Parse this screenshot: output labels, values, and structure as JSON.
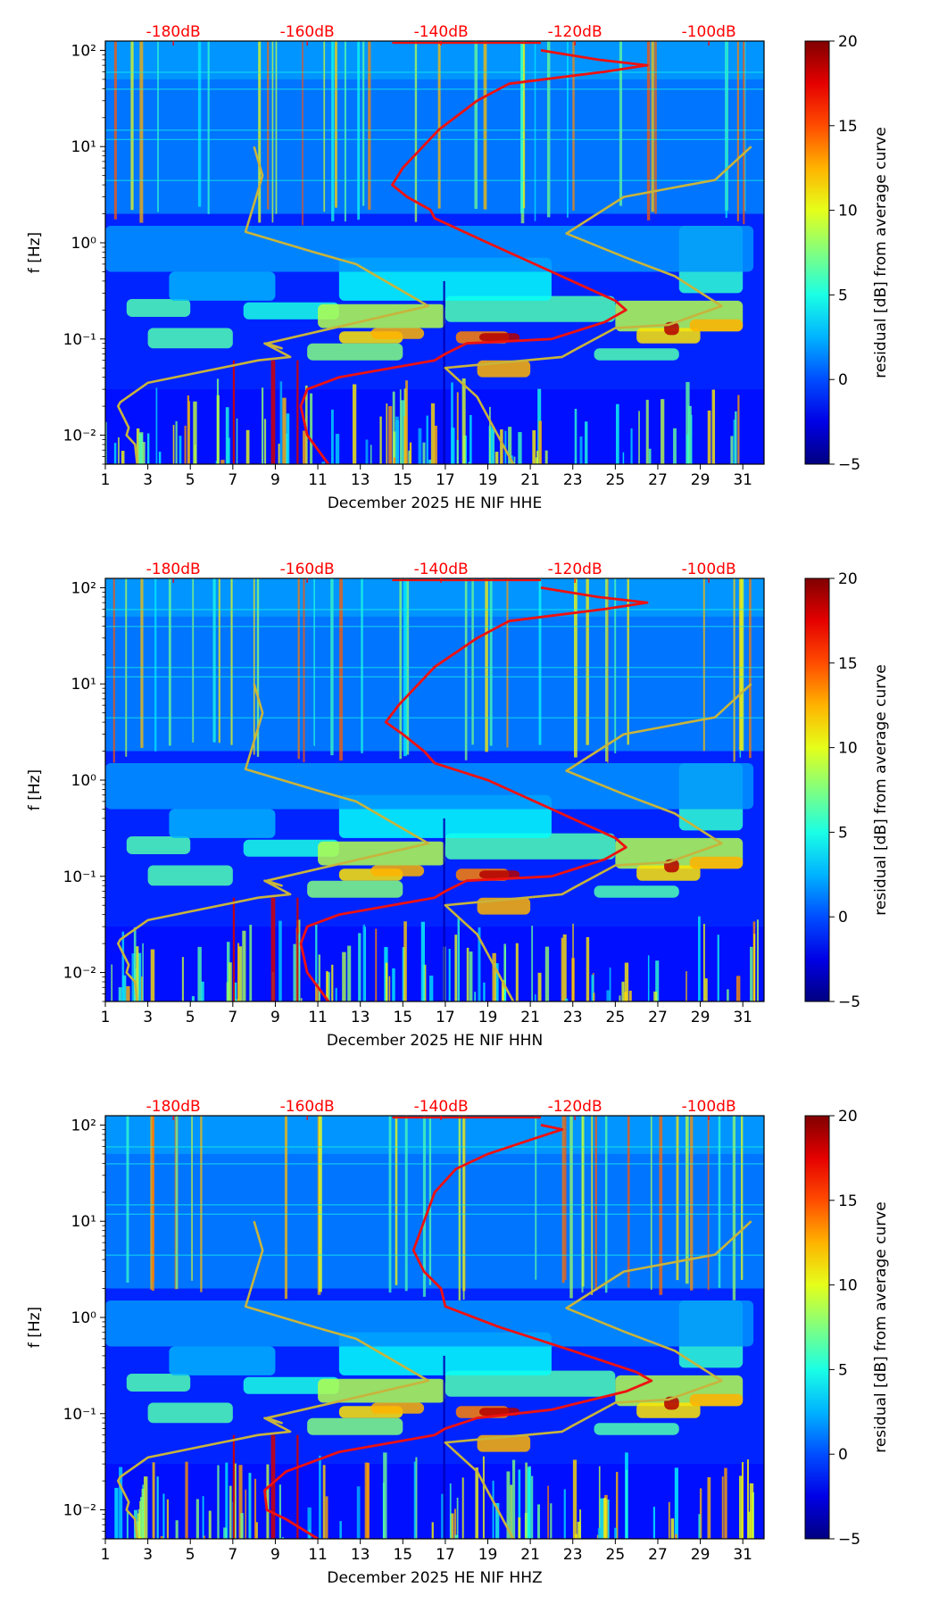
{
  "chart_data": [
    {
      "type": "heatmap",
      "channel": "HHE",
      "xlabel": "December 2025 HE NIF  HHE",
      "ylabel": "f [Hz]",
      "x_ticks": [
        "1",
        "3",
        "5",
        "7",
        "9",
        "11",
        "13",
        "15",
        "17",
        "19",
        "21",
        "23",
        "25",
        "27",
        "29",
        "31"
      ],
      "x_range": [
        1,
        32
      ],
      "y_ticks": [
        "10⁻²",
        "10⁻¹",
        "10⁰",
        "10¹",
        "10²"
      ],
      "y_range": [
        0.005,
        125
      ],
      "top_ticks": [
        "-180dB",
        "-160dB",
        "-140dB",
        "-120dB",
        "-100dB"
      ],
      "colorbar": {
        "label": "residual [dB] from average curve",
        "ticks": [
          "20",
          "15",
          "10",
          "5",
          "0",
          "−5"
        ],
        "range": [
          -5,
          20
        ]
      },
      "curves": {
        "noise_model_low": [
          [
            8.0,
            10
          ],
          [
            8.4,
            5
          ],
          [
            7.6,
            1.3
          ],
          [
            10.8,
            0.8
          ],
          [
            12.8,
            0.6
          ],
          [
            16.2,
            0.22
          ],
          [
            8.6,
            0.09
          ],
          [
            9.3,
            0.08
          ],
          [
            8.5,
            0.09
          ],
          [
            9.7,
            0.065
          ],
          [
            8.2,
            0.06
          ],
          [
            3.0,
            0.035
          ],
          [
            1.7,
            0.022
          ],
          [
            1.6,
            0.02
          ],
          [
            2.1,
            0.012
          ],
          [
            2.0,
            0.01
          ],
          [
            2.4,
            0.008
          ],
          [
            2.5,
            0.005
          ]
        ],
        "noise_model_high": [
          [
            31.4,
            10
          ],
          [
            29.7,
            4.5
          ],
          [
            25.4,
            3.0
          ],
          [
            22.7,
            1.25
          ],
          [
            25.5,
            0.7
          ],
          [
            27.8,
            0.45
          ],
          [
            30.0,
            0.22
          ],
          [
            27.5,
            0.14
          ],
          [
            25.0,
            0.13
          ],
          [
            23.0,
            0.075
          ],
          [
            22.5,
            0.065
          ],
          [
            17.0,
            0.05
          ],
          [
            18.5,
            0.025
          ],
          [
            20.2,
            0.005
          ]
        ],
        "average_psd": [
          [
            21.5,
            100
          ],
          [
            24.2,
            80
          ],
          [
            26.5,
            70
          ],
          [
            24.5,
            60
          ],
          [
            20.0,
            45
          ],
          [
            18.5,
            30
          ],
          [
            16.7,
            15
          ],
          [
            15.0,
            6
          ],
          [
            14.5,
            4
          ],
          [
            15.2,
            3
          ],
          [
            16.3,
            2.2
          ],
          [
            16.5,
            1.8
          ],
          [
            19.0,
            1.0
          ],
          [
            22.0,
            0.5
          ],
          [
            25.0,
            0.25
          ],
          [
            25.5,
            0.2
          ],
          [
            24.5,
            0.15
          ],
          [
            22.0,
            0.1
          ],
          [
            18.0,
            0.09
          ],
          [
            17.0,
            0.07
          ],
          [
            16.5,
            0.06
          ],
          [
            12.0,
            0.04
          ],
          [
            10.5,
            0.03
          ],
          [
            10.2,
            0.02
          ],
          [
            10.5,
            0.01
          ],
          [
            11.5,
            0.005
          ]
        ]
      }
    },
    {
      "type": "heatmap",
      "channel": "HHN",
      "xlabel": "December 2025 HE NIF  HHN",
      "ylabel": "f [Hz]",
      "x_ticks": [
        "1",
        "3",
        "5",
        "7",
        "9",
        "11",
        "13",
        "15",
        "17",
        "19",
        "21",
        "23",
        "25",
        "27",
        "29",
        "31"
      ],
      "x_range": [
        1,
        32
      ],
      "y_ticks": [
        "10⁻²",
        "10⁻¹",
        "10⁰",
        "10¹",
        "10²"
      ],
      "y_range": [
        0.005,
        125
      ],
      "top_ticks": [
        "-180dB",
        "-160dB",
        "-140dB",
        "-120dB",
        "-100dB"
      ],
      "colorbar": {
        "label": "residual [dB] from average curve",
        "ticks": [
          "20",
          "15",
          "10",
          "5",
          "0",
          "−5"
        ],
        "range": [
          -5,
          20
        ]
      },
      "curves": {
        "noise_model_low": [
          [
            8.0,
            10
          ],
          [
            8.4,
            5
          ],
          [
            7.6,
            1.3
          ],
          [
            10.8,
            0.8
          ],
          [
            12.8,
            0.6
          ],
          [
            16.2,
            0.22
          ],
          [
            8.6,
            0.09
          ],
          [
            9.3,
            0.08
          ],
          [
            8.5,
            0.09
          ],
          [
            9.7,
            0.065
          ],
          [
            8.2,
            0.06
          ],
          [
            3.0,
            0.035
          ],
          [
            1.7,
            0.022
          ],
          [
            1.6,
            0.02
          ],
          [
            2.1,
            0.012
          ],
          [
            2.0,
            0.01
          ],
          [
            2.4,
            0.008
          ],
          [
            2.5,
            0.005
          ]
        ],
        "noise_model_high": [
          [
            31.4,
            10
          ],
          [
            29.7,
            4.5
          ],
          [
            25.4,
            3.0
          ],
          [
            22.7,
            1.25
          ],
          [
            25.5,
            0.7
          ],
          [
            27.8,
            0.45
          ],
          [
            30.0,
            0.22
          ],
          [
            27.5,
            0.14
          ],
          [
            25.0,
            0.13
          ],
          [
            23.0,
            0.075
          ],
          [
            22.5,
            0.065
          ],
          [
            17.0,
            0.05
          ],
          [
            18.5,
            0.025
          ],
          [
            20.2,
            0.005
          ]
        ],
        "average_psd": [
          [
            21.5,
            100
          ],
          [
            24.2,
            80
          ],
          [
            26.5,
            70
          ],
          [
            24.5,
            60
          ],
          [
            20.0,
            45
          ],
          [
            18.5,
            30
          ],
          [
            16.5,
            15
          ],
          [
            14.8,
            6
          ],
          [
            14.2,
            4
          ],
          [
            15.0,
            3
          ],
          [
            16.0,
            2.0
          ],
          [
            16.5,
            1.5
          ],
          [
            19.0,
            1.0
          ],
          [
            22.0,
            0.5
          ],
          [
            25.0,
            0.25
          ],
          [
            25.5,
            0.2
          ],
          [
            24.5,
            0.15
          ],
          [
            22.0,
            0.1
          ],
          [
            18.0,
            0.09
          ],
          [
            17.0,
            0.07
          ],
          [
            16.5,
            0.06
          ],
          [
            12.0,
            0.04
          ],
          [
            10.5,
            0.03
          ],
          [
            10.2,
            0.02
          ],
          [
            10.5,
            0.01
          ],
          [
            11.5,
            0.005
          ]
        ]
      }
    },
    {
      "type": "heatmap",
      "channel": "HHZ",
      "xlabel": "December 2025 HE NIF  HHZ",
      "ylabel": "f [Hz]",
      "x_ticks": [
        "1",
        "3",
        "5",
        "7",
        "9",
        "11",
        "13",
        "15",
        "17",
        "19",
        "21",
        "23",
        "25",
        "27",
        "29",
        "31"
      ],
      "x_range": [
        1,
        32
      ],
      "y_ticks": [
        "10⁻²",
        "10⁻¹",
        "10⁰",
        "10¹",
        "10²"
      ],
      "y_range": [
        0.005,
        125
      ],
      "top_ticks": [
        "-180dB",
        "-160dB",
        "-140dB",
        "-120dB",
        "-100dB"
      ],
      "colorbar": {
        "label": "residual [dB] from average curve",
        "ticks": [
          "20",
          "15",
          "10",
          "5",
          "0",
          "−5"
        ],
        "range": [
          -5,
          20
        ]
      },
      "curves": {
        "noise_model_low": [
          [
            8.0,
            10
          ],
          [
            8.4,
            5
          ],
          [
            7.6,
            1.3
          ],
          [
            10.8,
            0.8
          ],
          [
            12.8,
            0.6
          ],
          [
            16.2,
            0.22
          ],
          [
            8.6,
            0.09
          ],
          [
            9.3,
            0.08
          ],
          [
            8.5,
            0.09
          ],
          [
            9.7,
            0.065
          ],
          [
            8.2,
            0.06
          ],
          [
            3.0,
            0.035
          ],
          [
            1.7,
            0.022
          ],
          [
            1.6,
            0.02
          ],
          [
            2.1,
            0.012
          ],
          [
            2.0,
            0.01
          ],
          [
            2.4,
            0.008
          ],
          [
            2.5,
            0.005
          ]
        ],
        "noise_model_high": [
          [
            31.4,
            10
          ],
          [
            29.7,
            4.5
          ],
          [
            25.4,
            3.0
          ],
          [
            22.7,
            1.25
          ],
          [
            25.5,
            0.7
          ],
          [
            27.8,
            0.45
          ],
          [
            30.0,
            0.22
          ],
          [
            27.5,
            0.14
          ],
          [
            25.0,
            0.13
          ],
          [
            23.0,
            0.075
          ],
          [
            22.5,
            0.065
          ],
          [
            17.0,
            0.05
          ],
          [
            18.5,
            0.025
          ],
          [
            20.2,
            0.005
          ]
        ],
        "average_psd": [
          [
            21.5,
            100
          ],
          [
            22.5,
            90
          ],
          [
            21.0,
            70
          ],
          [
            19.0,
            50
          ],
          [
            17.5,
            35
          ],
          [
            16.5,
            20
          ],
          [
            16.0,
            10
          ],
          [
            15.5,
            5
          ],
          [
            16.0,
            3
          ],
          [
            16.8,
            2
          ],
          [
            17.0,
            1.3
          ],
          [
            19.5,
            0.8
          ],
          [
            23.0,
            0.45
          ],
          [
            26.0,
            0.27
          ],
          [
            26.7,
            0.22
          ],
          [
            25.5,
            0.17
          ],
          [
            22.0,
            0.11
          ],
          [
            18.5,
            0.09
          ],
          [
            17.0,
            0.07
          ],
          [
            16.5,
            0.06
          ],
          [
            12.0,
            0.04
          ],
          [
            9.5,
            0.025
          ],
          [
            8.5,
            0.016
          ],
          [
            8.6,
            0.01
          ],
          [
            9.5,
            0.008
          ],
          [
            11.0,
            0.005
          ]
        ]
      }
    }
  ],
  "colors": {
    "average_curve": "#ee1111",
    "noise_models": "#c8b43c",
    "top_labels": "#ff0000"
  }
}
